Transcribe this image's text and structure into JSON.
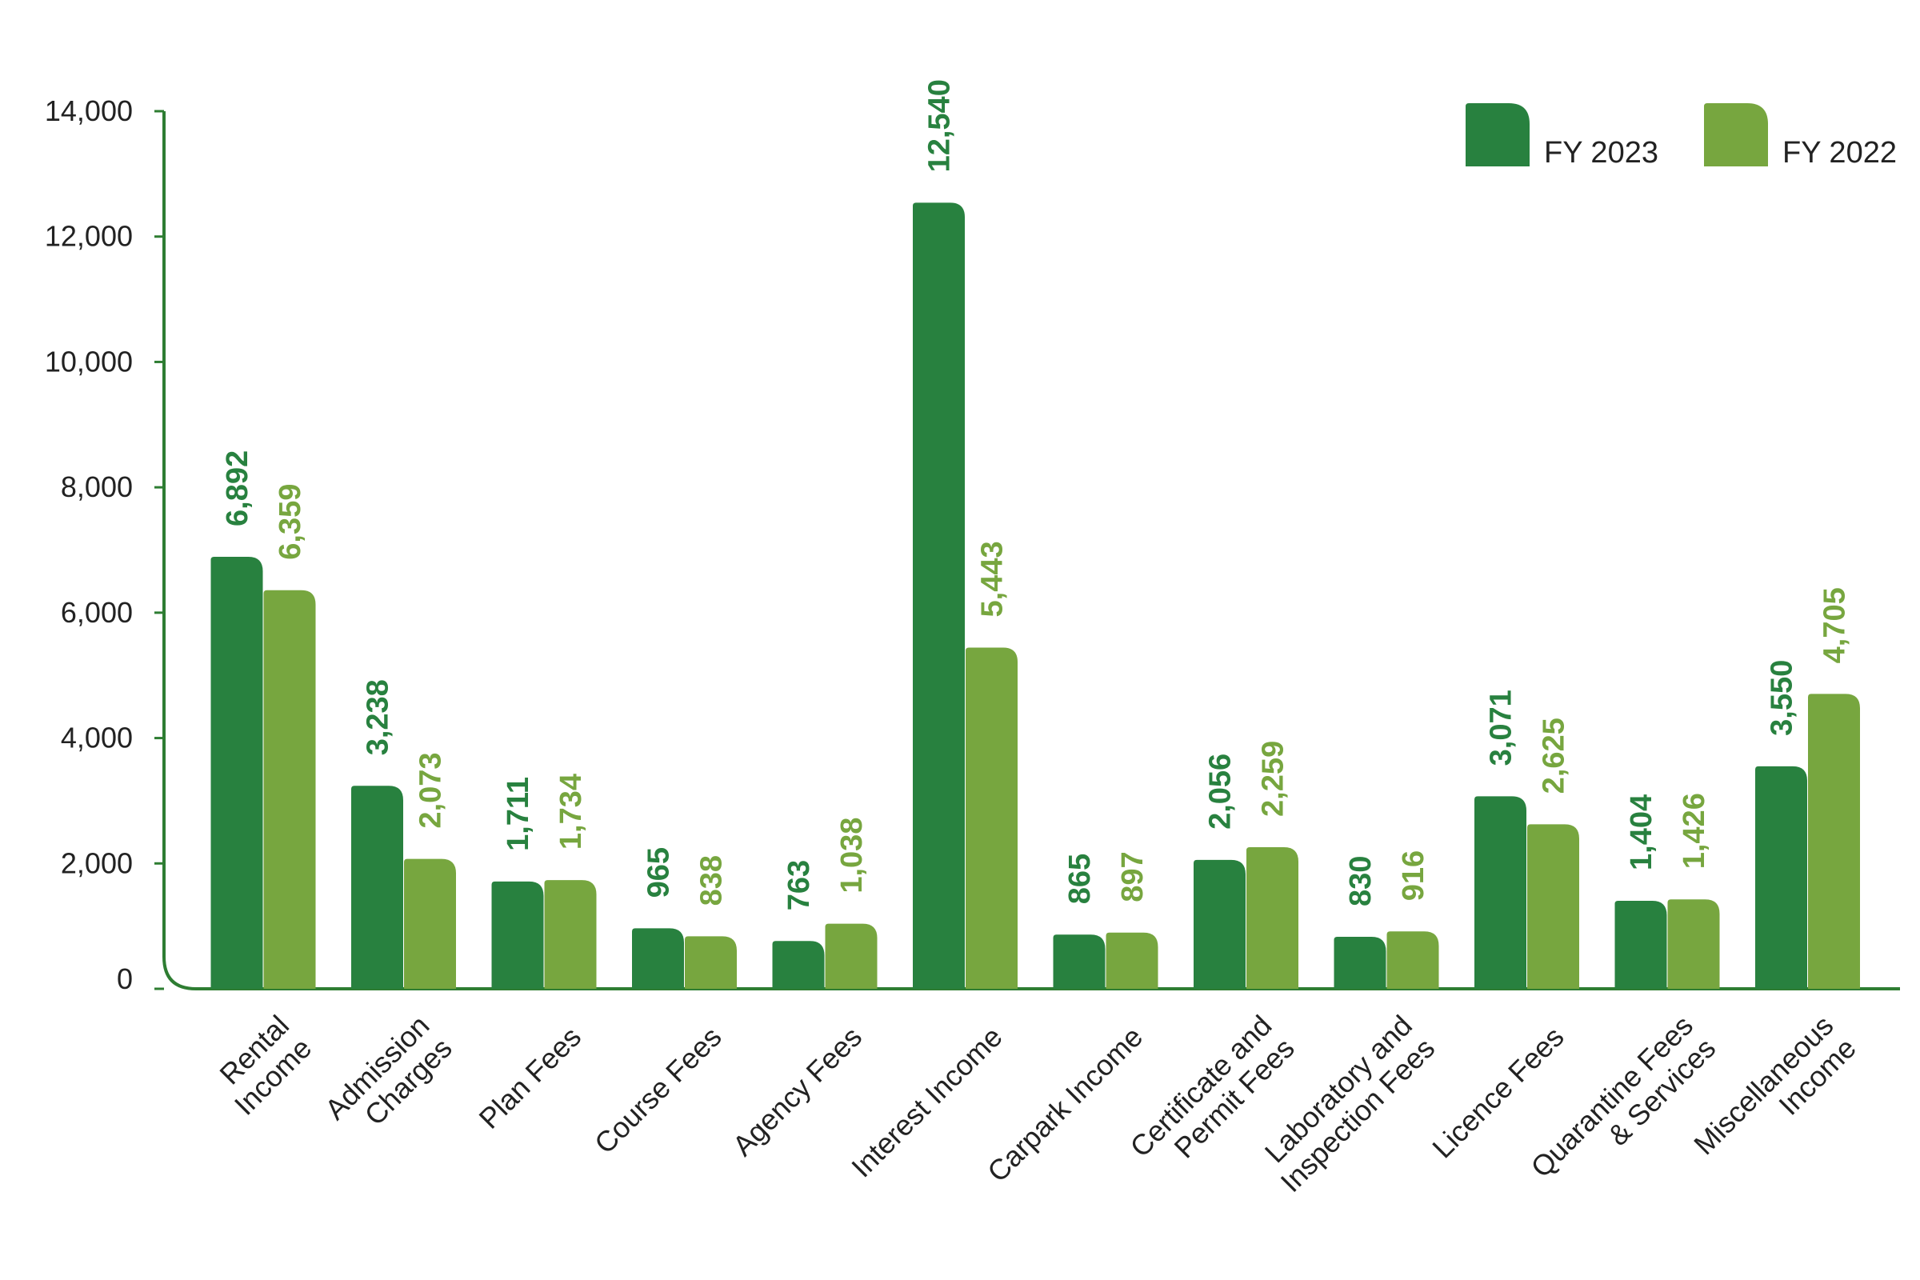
{
  "chart_data": {
    "type": "bar",
    "categories": [
      [
        "Rental",
        "Income"
      ],
      [
        "Admission",
        "Charges"
      ],
      [
        "Plan Fees"
      ],
      [
        "Course Fees"
      ],
      [
        "Agency Fees"
      ],
      [
        "Interest Income"
      ],
      [
        "Carpark  Income"
      ],
      [
        "Certificate and",
        "Permit Fees"
      ],
      [
        "Laboratory and",
        "Inspection Fees"
      ],
      [
        "Licence Fees"
      ],
      [
        "Quarantine Fees",
        "& Services"
      ],
      [
        "Miscellaneous",
        "Income"
      ]
    ],
    "series": [
      {
        "name": "FY 2023",
        "color": "#28813f",
        "values": [
          6892,
          3238,
          1711,
          965,
          763,
          12540,
          865,
          2056,
          830,
          3071,
          1404,
          3550
        ],
        "labels": [
          "6,892",
          "3,238",
          "1,711",
          "965",
          "763",
          "12,540",
          "865",
          "2,056",
          "830",
          "3,071",
          "1,404",
          "3,550"
        ]
      },
      {
        "name": "FY 2022",
        "color": "#77a63f",
        "values": [
          6359,
          2073,
          1734,
          838,
          1038,
          5443,
          897,
          2259,
          916,
          2625,
          1426,
          4705
        ],
        "labels": [
          "6,359",
          "2,073",
          "1,734",
          "838",
          "1,038",
          "5,443",
          "897",
          "2,259",
          "916",
          "2,625",
          "1,426",
          "4,705"
        ]
      }
    ],
    "ylim": [
      0,
      14000
    ],
    "yticks": [
      0,
      2000,
      4000,
      6000,
      8000,
      10000,
      12000,
      14000
    ],
    "ytick_labels": [
      "0",
      "2,000",
      "4,000",
      "6,000",
      "8,000",
      "10,000",
      "12,000",
      "14,000"
    ],
    "axis_color": "#2e7d32",
    "legend_position": "top-right",
    "grid": false
  }
}
